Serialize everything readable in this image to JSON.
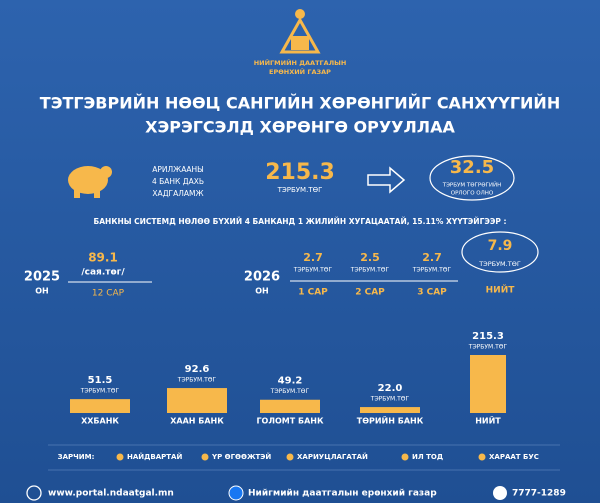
{
  "logo": {
    "line1": "НИЙГМИЙН ДААТГАЛЫН",
    "line2": "ЕРӨНХИЙ ГАЗАР"
  },
  "title": [
    "ТЭТГЭВРИЙН НӨӨЦ САНГИЙН ХӨРӨНГИЙГ САНХҮҮГИЙН",
    "ХЭРЭГСЭЛД ХӨРӨНГӨ ОРУУЛЛАА"
  ],
  "deposit": {
    "label": [
      "АРИЛЖААНЫ",
      "4 БАНК ДАХЬ",
      "ХАДГАЛАМЖ"
    ],
    "value": "215.3",
    "unit": "ТЭРБУМ.ТӨГ"
  },
  "income": {
    "value": "32.5",
    "unit": [
      "ТЭРБУМ ТӨГРӨГИЙН",
      "ОРЛОГО ОЛНО"
    ]
  },
  "subtitle": "БАНКНЫ СИСТЕМД НӨЛӨӨ БҮХИЙ 4 БАНКАНД  1 ЖИЛИЙН ХУГАЦААТАЙ, 15.11% ХҮҮТЭЙГЭЭР :",
  "y2025": {
    "year": "2025",
    "suffix": "ОН",
    "value": "89.1",
    "unit": "/сая.төг/",
    "period": "12 САР"
  },
  "y2026": {
    "year": "2026",
    "suffix": "ОН",
    "items": [
      {
        "value": "2.7",
        "unit": "ТЭРБУМ.ТӨГ",
        "period": "1 САР"
      },
      {
        "value": "2.5",
        "unit": "ТЭРБУМ.ТӨГ",
        "period": "2 САР"
      },
      {
        "value": "2.7",
        "unit": "ТЭРБУМ.ТӨГ",
        "period": "3 САР"
      }
    ],
    "total": {
      "value": "7.9",
      "unit": "ТЭРБУМ.ТӨГ",
      "label": "НИЙТ"
    }
  },
  "chart_data": {
    "type": "bar",
    "categories": [
      "ХХБАНК",
      "ХААН БАНК",
      "ГОЛОМТ БАНК",
      "ТӨРИЙН БАНК",
      "НИЙТ"
    ],
    "values": [
      51.5,
      92.6,
      49.2,
      22.0,
      215.3
    ],
    "value_labels": [
      "51.5",
      "92.6",
      "49.2",
      "22.0",
      "215.3"
    ],
    "unit": "ТЭРБУМ.ТӨГ",
    "color": "#f7b84b"
  },
  "principles": {
    "label": "ЗАРЧИМ:",
    "items": [
      "НАЙДВАРТАЙ",
      "ҮР ӨГӨӨЖТЭЙ",
      "ХАРИУЦЛАГАТАЙ",
      "ИЛ ТОД",
      "ХАРААТ БУС"
    ]
  },
  "footer": {
    "web": "www.portal.ndaatgal.mn",
    "facebook": "Нийгмийн даатгалын ерөнхий газар",
    "phone": "7777-1289"
  }
}
